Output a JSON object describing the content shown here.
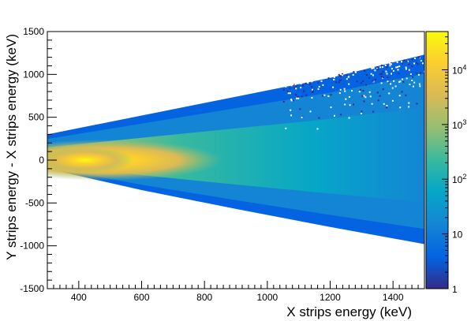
{
  "chart_data": {
    "type": "heatmap",
    "title": "",
    "xlabel": "X strips energy (keV)",
    "ylabel": "Y strips energy - X strips energy (keV)",
    "xlim": [
      300,
      1500
    ],
    "ylim": [
      -1500,
      1500
    ],
    "x_ticks": [
      "400",
      "600",
      "800",
      "1000",
      "1200",
      "1400"
    ],
    "y_ticks": [
      "-1500",
      "-1000",
      "-500",
      "0",
      "500",
      "1000",
      "1500"
    ],
    "z_scale": "log",
    "zlim": [
      1,
      50000
    ],
    "z_ticks": [
      "1",
      "10",
      "10^2",
      "10^3",
      "10^4"
    ],
    "colormap": [
      "#352a87",
      "#0363e1",
      "#1485d4",
      "#06a7c6",
      "#38b99e",
      "#92bf73",
      "#d9ba56",
      "#fcce2e",
      "#f9fb0e"
    ],
    "envelope": {
      "upper_edge": [
        [
          300,
          300
        ],
        [
          600,
          520
        ],
        [
          900,
          740
        ],
        [
          1200,
          960
        ],
        [
          1500,
          1230
        ]
      ],
      "lower_edge": [
        [
          300,
          -100
        ],
        [
          600,
          -350
        ],
        [
          900,
          -570
        ],
        [
          1200,
          -780
        ],
        [
          1500,
          -980
        ]
      ],
      "hotspot_center": [
        420,
        0
      ]
    },
    "grid": false,
    "legend": "color bar right"
  }
}
